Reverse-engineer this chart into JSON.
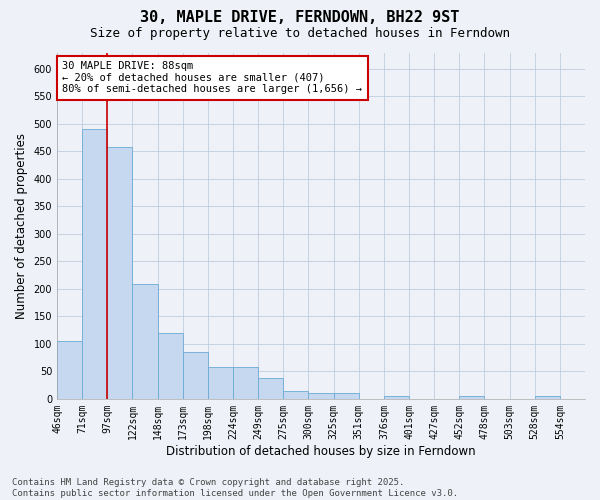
{
  "title": "30, MAPLE DRIVE, FERNDOWN, BH22 9ST",
  "subtitle": "Size of property relative to detached houses in Ferndown",
  "xlabel": "Distribution of detached houses by size in Ferndown",
  "ylabel": "Number of detached properties",
  "footer_line1": "Contains HM Land Registry data © Crown copyright and database right 2025.",
  "footer_line2": "Contains public sector information licensed under the Open Government Licence v3.0.",
  "categories": [
    "46sqm",
    "71sqm",
    "97sqm",
    "122sqm",
    "148sqm",
    "173sqm",
    "198sqm",
    "224sqm",
    "249sqm",
    "275sqm",
    "300sqm",
    "325sqm",
    "351sqm",
    "376sqm",
    "401sqm",
    "427sqm",
    "452sqm",
    "478sqm",
    "503sqm",
    "528sqm",
    "554sqm"
  ],
  "values": [
    105,
    490,
    458,
    208,
    120,
    85,
    57,
    57,
    38,
    15,
    10,
    10,
    0,
    5,
    0,
    0,
    5,
    0,
    0,
    5,
    0
  ],
  "bar_color": "#c5d8f0",
  "bar_edge_color": "#6baad4",
  "vline_x_idx": 2,
  "vline_color": "#cc0000",
  "annotation_text": "30 MAPLE DRIVE: 88sqm\n← 20% of detached houses are smaller (407)\n80% of semi-detached houses are larger (1,656) →",
  "annotation_box_color": "#ffffff",
  "annotation_box_edge_color": "#cc0000",
  "bg_color": "#eef2f8",
  "plot_bg_color": "#eef2f8",
  "grid_color": "#c0cce0",
  "ylim": [
    0,
    630
  ],
  "yticks": [
    0,
    50,
    100,
    150,
    200,
    250,
    300,
    350,
    400,
    450,
    500,
    550,
    600
  ],
  "title_fontsize": 11,
  "subtitle_fontsize": 9,
  "tick_fontsize": 7,
  "label_fontsize": 8.5,
  "footer_fontsize": 6.5
}
